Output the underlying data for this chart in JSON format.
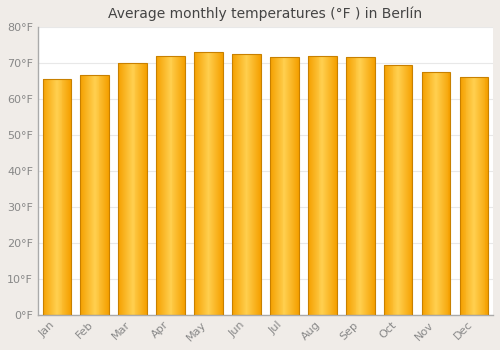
{
  "title": "Average monthly temperatures (°F ) in Berlín",
  "months": [
    "Jan",
    "Feb",
    "Mar",
    "Apr",
    "May",
    "Jun",
    "Jul",
    "Aug",
    "Sep",
    "Oct",
    "Nov",
    "Dec"
  ],
  "values": [
    65.5,
    66.5,
    70.0,
    72.0,
    73.0,
    72.5,
    71.5,
    72.0,
    71.5,
    69.5,
    67.5,
    66.0
  ],
  "bar_color_center": "#FFD050",
  "bar_color_edge": "#F5A000",
  "bar_outline_color": "#C88000",
  "ylim": [
    0,
    80
  ],
  "yticks": [
    0,
    10,
    20,
    30,
    40,
    50,
    60,
    70,
    80
  ],
  "ytick_labels": [
    "0°F",
    "10°F",
    "20°F",
    "30°F",
    "40°F",
    "50°F",
    "60°F",
    "70°F",
    "80°F"
  ],
  "fig_background_color": "#f0ece8",
  "plot_background_color": "#ffffff",
  "grid_color": "#e8e8e8",
  "title_fontsize": 10,
  "tick_fontsize": 8,
  "tick_color": "#888888",
  "title_color": "#444444",
  "bar_width": 0.75
}
